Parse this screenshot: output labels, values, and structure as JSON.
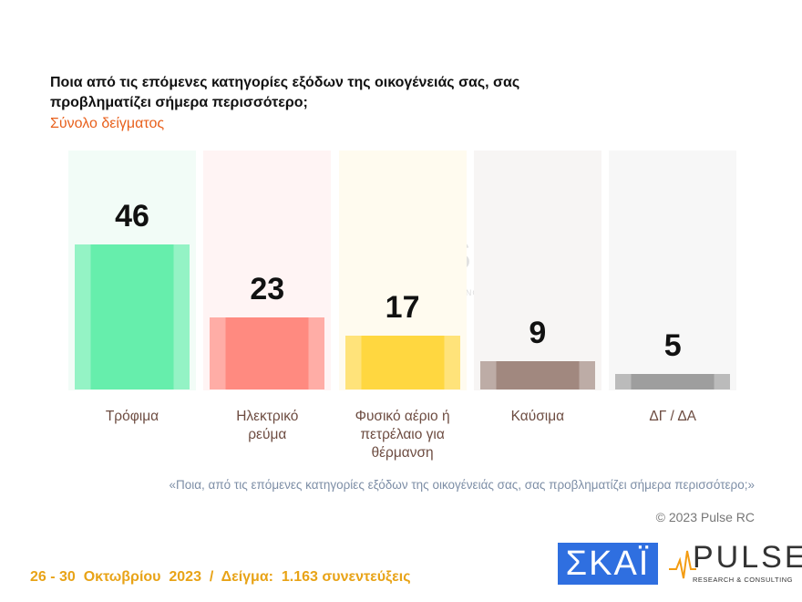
{
  "chart_data": {
    "type": "bar",
    "title": "Ποια από τις επόμενες κατηγορίες εξόδων της οικογένειάς σας, σας προβληματίζει σήμερα περισσότερο;",
    "subtitle": "Σύνολο δείγματος",
    "categories": [
      "Τρόφιμα",
      "Ηλεκτρικό ρεύμα",
      "Φυσικό αέριο ή πετρέλαιο για θέρμανση",
      "Καύσιμα",
      "ΔΓ / ΔΑ"
    ],
    "values": [
      46,
      23,
      17,
      9,
      5
    ],
    "colors": [
      "#66eeac",
      "#ff8a80",
      "#ffd740",
      "#a1887f",
      "#9e9e9e"
    ],
    "background_colors": [
      "#f2fcf7",
      "#fff4f4",
      "#fffbef",
      "#f7f5f4",
      "#f7f7f7"
    ]
  },
  "footnote": "«Ποια, από τις επόμενες κατηγορίες εξόδων της οικογένειάς σας, σας προβληματίζει σήμερα περισσότερο;»",
  "copyright": "© 2023 Pulse RC",
  "date_sample": "26 - 30  Οκτωβρίου  2023  /  Δείγμα:  1.163 συνεντεύξεις",
  "logos": {
    "skai": "ΣΚΑΪ",
    "pulse": "PULSE",
    "pulse_tagline": "RESEARCH & CONSULTING"
  }
}
